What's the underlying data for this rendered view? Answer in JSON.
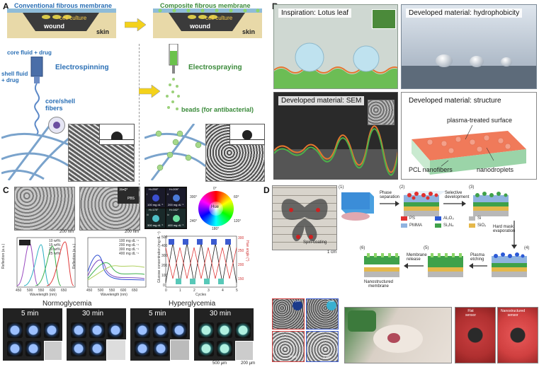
{
  "panels": {
    "a": {
      "letter": "A",
      "conventional_label": "Conventional fibrous membrane",
      "composite_label": "Composite fibrous membrane",
      "cell_culture": "cell culture",
      "wound": "wound",
      "skin": "skin",
      "core_fluid": "core fluid + drug",
      "shell_fluid": "shell fluid\n+ drug",
      "electrospinning": "Electrospinning",
      "electrospraying": "Electrospraying",
      "core_shell_fibers": "core/shell\nfibers",
      "beads": "beads (for antibacterial)"
    },
    "b": {
      "letter": "B",
      "tile1": "Inspiration: Lotus leaf",
      "tile2": "Developed material: hydrophobicity",
      "tile3": "Developed material: SEM",
      "tile4": "Developed material: structure",
      "plasma": "plasma-treated surface",
      "pcl": "PCL nanofibers",
      "nanodroplets": "nanodroplets"
    },
    "c": {
      "letter": "C",
      "scale1": "200 nm",
      "scale2": "200 nm",
      "inset_h": "H=0°",
      "inset_pbs": "PBS",
      "tiles": [
        {
          "h": "H=253°",
          "conc": "100 mg dL⁻¹",
          "n": "i"
        },
        {
          "h": "H=209°",
          "conc": "200 mg dL⁻¹",
          "n": "ii"
        },
        {
          "h": "H=175°",
          "conc": "300 mg dL⁻¹",
          "n": "iii"
        },
        {
          "h": "H=162°",
          "conc": "400 mg dL⁻¹",
          "n": "iv"
        }
      ],
      "wheel_label": "Hue",
      "wheel_ticks": [
        "0°",
        "60°",
        "120°",
        "180°",
        "240°",
        "300°"
      ],
      "chart1_legend": [
        "10 wt%",
        "15 wt%",
        "20 wt%",
        "25 wt%"
      ],
      "chart1_ylabel": "Reflection (a.u.)",
      "chart1_xlabel": "Wavelength (nm)",
      "chart1_xticks": [
        "450",
        "500",
        "550",
        "600",
        "650"
      ],
      "chart2_legend": [
        "100 mg dL⁻¹",
        "200 mg dL⁻¹",
        "300 mg dL⁻¹",
        "400 mg dL⁻¹"
      ],
      "chart2_ylabel": "Reflection (a.u.)",
      "chart2_xlabel": "Wavelength (nm)",
      "chart2_xticks": [
        "450",
        "500",
        "550",
        "600",
        "650"
      ],
      "chart3_ylabel": "Glucose concentration (mg dL⁻¹)",
      "chart3_y2label": "Hue angle (°)",
      "chart3_xlabel": "Cycles",
      "chart3_xticks": [
        "0",
        "1",
        "2",
        "3",
        "4",
        "5"
      ],
      "chart3_yticks": [
        "0",
        "100",
        "200",
        "300",
        "400",
        "500"
      ],
      "chart3_y2ticks": [
        "150",
        "200",
        "250",
        "300"
      ],
      "normo": "Normoglycemia",
      "hyper": "Hyperglycemia",
      "t5a": "5 min",
      "t30a": "30 min",
      "t5b": "5 min",
      "t30b": "30 min",
      "sb1": "500 µm",
      "sb2": "200 µm"
    },
    "d": {
      "letter": "D",
      "photo_scale": "1 cm",
      "spin": "Spin-coating",
      "steps": [
        "(1)",
        "(2)",
        "(3)",
        "(4)",
        "(5)",
        "(6)"
      ],
      "phase": "Phase\nseparation",
      "selective": "Selective\ndevelopment",
      "hardmask": "Hard mask\nevaporation",
      "plasma": "Plasma\netching",
      "release": "Membrane\nrelease",
      "nanomembrane": "Nanostructured\nmembrane",
      "legend": [
        {
          "name": "PS",
          "color": "#e03030"
        },
        {
          "name": "Al₂O₃",
          "color": "#2b59d6"
        },
        {
          "name": "Si",
          "color": "#b8b8b8"
        },
        {
          "name": "PMMA",
          "color": "#8fb3e0"
        },
        {
          "name": "Si₃N₄",
          "color": "#3fa14a"
        },
        {
          "name": "SiO₂",
          "color": "#e5b84a"
        }
      ],
      "sem_scales": [
        "2 µm",
        "2 µm",
        "1 µm",
        "1 µm"
      ],
      "flat_sensor": "Flat\nsensor",
      "nano_sensor": "Nanostructured\nsensor"
    }
  }
}
